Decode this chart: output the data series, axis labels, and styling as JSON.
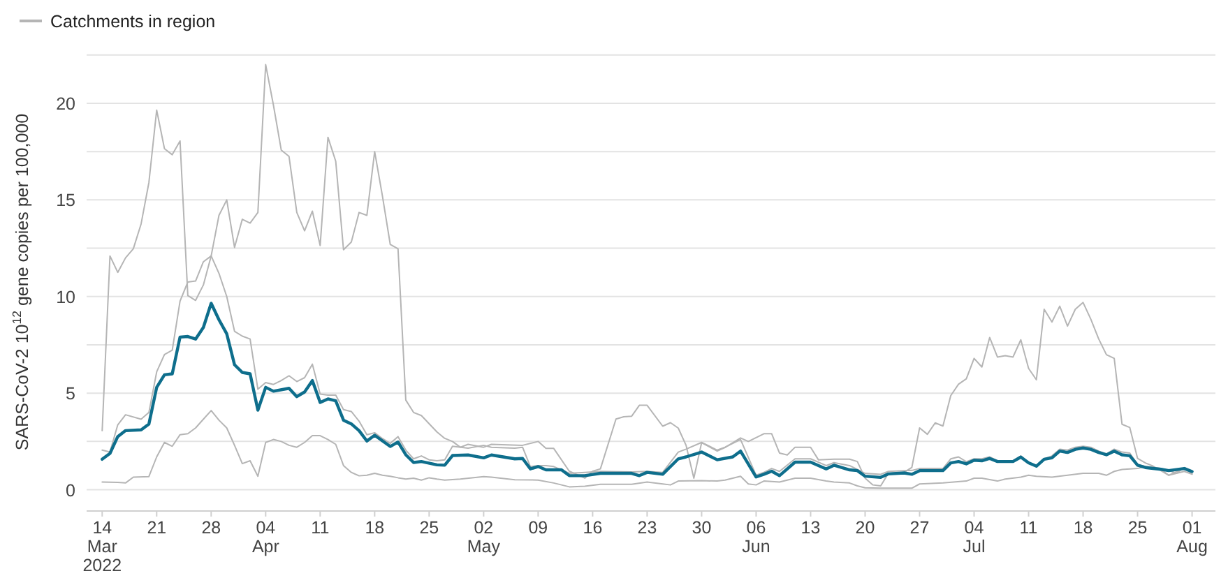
{
  "chart_data": {
    "type": "line",
    "ylabel": "SARS-CoV-2  10$^{12}$ gene copies per 100,000",
    "xlim": [
      "2022-03-12",
      "2022-08-04"
    ],
    "ylim": [
      -1.1,
      22.6
    ],
    "xticks": [
      {
        "value": "2022-03-14",
        "label": "14\nMar\n2022"
      },
      {
        "value": "2022-03-21",
        "label": "21"
      },
      {
        "value": "2022-03-28",
        "label": "28"
      },
      {
        "value": "2022-04-04",
        "label": "04\nApr"
      },
      {
        "value": "2022-04-11",
        "label": "11"
      },
      {
        "value": "2022-04-18",
        "label": "18"
      },
      {
        "value": "2022-04-25",
        "label": "25"
      },
      {
        "value": "2022-05-02",
        "label": "02\nMay"
      },
      {
        "value": "2022-05-09",
        "label": "09"
      },
      {
        "value": "2022-05-16",
        "label": "16"
      },
      {
        "value": "2022-05-23",
        "label": "23"
      },
      {
        "value": "2022-05-30",
        "label": "30"
      },
      {
        "value": "2022-06-06",
        "label": "06\nJun"
      },
      {
        "value": "2022-06-13",
        "label": "13"
      },
      {
        "value": "2022-06-20",
        "label": "20"
      },
      {
        "value": "2022-06-27",
        "label": "27"
      },
      {
        "value": "2022-07-04",
        "label": "04\nJul"
      },
      {
        "value": "2022-07-11",
        "label": "11"
      },
      {
        "value": "2022-07-18",
        "label": "18"
      },
      {
        "value": "2022-07-25",
        "label": "25"
      },
      {
        "value": "2022-08-01",
        "label": "01\nAug"
      }
    ],
    "yticks": [
      0,
      {
        "value": 2.5,
        "label": null
      },
      5,
      {
        "value": 7.5,
        "label": null
      },
      10,
      {
        "value": 12.5,
        "label": null
      },
      15,
      {
        "value": 17.5,
        "label": null
      },
      20,
      {
        "value": 22.5,
        "label": null
      }
    ],
    "grid": "y",
    "legend": "top left",
    "marker": "none",
    "line_style": "solid",
    "series": [
      {
        "color": "#0e6e8c",
        "x": [
          "2022-03-14",
          "2022-03-15",
          "2022-03-16",
          "2022-03-17",
          "2022-03-19",
          "2022-03-20",
          "2022-03-21",
          "2022-03-22",
          "2022-03-23",
          "2022-03-24",
          "2022-03-25",
          "2022-03-26",
          "2022-03-27",
          "2022-03-28",
          "2022-03-29",
          "2022-03-30",
          "2022-03-31",
          "2022-04-01",
          "2022-04-02",
          "2022-04-03",
          "2022-04-04",
          "2022-04-05",
          "2022-04-07",
          "2022-04-08",
          "2022-04-09",
          "2022-04-10",
          "2022-04-11",
          "2022-04-12",
          "2022-04-13",
          "2022-04-14",
          "2022-04-15",
          "2022-04-16",
          "2022-04-17",
          "2022-04-18",
          "2022-04-20",
          "2022-04-21",
          "2022-04-22",
          "2022-04-23",
          "2022-04-24",
          "2022-04-26",
          "2022-04-27",
          "2022-04-28",
          "2022-04-30",
          "2022-05-02",
          "2022-05-03",
          "2022-05-06",
          "2022-05-07",
          "2022-05-08",
          "2022-05-09",
          "2022-05-10",
          "2022-05-12",
          "2022-05-13",
          "2022-05-15",
          "2022-05-17",
          "2022-05-21",
          "2022-05-22",
          "2022-05-23",
          "2022-05-25",
          "2022-05-27",
          "2022-05-28",
          "2022-05-30",
          "2022-06-01",
          "2022-06-03",
          "2022-06-04",
          "2022-06-06",
          "2022-06-07",
          "2022-06-08",
          "2022-06-09",
          "2022-06-11",
          "2022-06-13",
          "2022-06-15",
          "2022-06-16",
          "2022-06-18",
          "2022-06-19",
          "2022-06-20",
          "2022-06-22",
          "2022-06-23",
          "2022-06-25",
          "2022-06-26",
          "2022-06-27",
          "2022-06-30",
          "2022-07-01",
          "2022-07-02",
          "2022-07-03",
          "2022-07-04",
          "2022-07-05",
          "2022-07-06",
          "2022-07-07",
          "2022-07-09",
          "2022-07-10",
          "2022-07-11",
          "2022-07-12",
          "2022-07-13",
          "2022-07-14",
          "2022-07-15",
          "2022-07-16",
          "2022-07-17",
          "2022-07-18",
          "2022-07-19",
          "2022-07-20",
          "2022-07-21",
          "2022-07-22",
          "2022-07-23",
          "2022-07-24",
          "2022-07-25",
          "2022-07-26",
          "2022-07-28",
          "2022-07-29",
          "2022-07-31",
          "2022-08-01"
        ],
        "values": [
          1.58,
          1.88,
          2.75,
          3.06,
          3.1,
          3.4,
          5.3,
          5.95,
          6.0,
          7.9,
          7.93,
          7.8,
          8.4,
          9.65,
          8.8,
          8.07,
          6.47,
          6.07,
          6.0,
          4.12,
          5.3,
          5.1,
          5.25,
          4.82,
          5.06,
          5.65,
          4.52,
          4.7,
          4.6,
          3.6,
          3.41,
          3.06,
          2.52,
          2.82,
          2.24,
          2.47,
          1.81,
          1.41,
          1.46,
          1.29,
          1.27,
          1.77,
          1.8,
          1.65,
          1.8,
          1.6,
          1.62,
          1.08,
          1.2,
          1.03,
          1.03,
          0.73,
          0.73,
          0.85,
          0.85,
          0.73,
          0.9,
          0.8,
          1.6,
          1.7,
          1.95,
          1.55,
          1.7,
          2.0,
          0.66,
          0.8,
          0.96,
          0.73,
          1.43,
          1.43,
          1.08,
          1.27,
          1.03,
          0.99,
          0.7,
          0.64,
          0.82,
          0.87,
          0.8,
          0.99,
          0.99,
          1.39,
          1.46,
          1.34,
          1.53,
          1.5,
          1.62,
          1.46,
          1.46,
          1.69,
          1.39,
          1.22,
          1.58,
          1.65,
          2.0,
          1.93,
          2.09,
          2.16,
          2.09,
          1.93,
          1.81,
          2.0,
          1.81,
          1.76,
          1.27,
          1.15,
          1.06,
          0.99,
          1.1,
          0.94
        ]
      },
      {
        "name": "Catchments in region",
        "color": "#b5b5b5",
        "x": [
          "2022-03-14",
          "2022-03-15",
          "2022-03-16",
          "2022-03-17",
          "2022-03-18",
          "2022-03-19",
          "2022-03-20",
          "2022-03-21",
          "2022-03-22",
          "2022-03-23",
          "2022-03-24",
          "2022-03-25",
          "2022-03-26",
          "2022-03-27",
          "2022-03-28",
          "2022-03-29",
          "2022-03-30",
          "2022-03-31",
          "2022-04-01",
          "2022-04-02",
          "2022-04-03",
          "2022-04-04",
          "2022-04-05",
          "2022-04-06",
          "2022-04-07",
          "2022-04-08",
          "2022-04-09",
          "2022-04-10",
          "2022-04-11",
          "2022-04-12",
          "2022-04-13",
          "2022-04-14",
          "2022-04-15",
          "2022-04-16",
          "2022-04-17",
          "2022-04-18",
          "2022-04-19",
          "2022-04-20",
          "2022-04-21",
          "2022-04-22",
          "2022-04-23",
          "2022-04-24",
          "2022-04-26",
          "2022-04-27",
          "2022-04-28",
          "2022-04-29",
          "2022-04-30",
          "2022-05-02",
          "2022-05-03",
          "2022-05-07",
          "2022-05-09",
          "2022-05-10",
          "2022-05-11",
          "2022-05-13",
          "2022-05-15",
          "2022-05-16",
          "2022-05-17",
          "2022-05-19",
          "2022-05-20",
          "2022-05-21",
          "2022-05-22",
          "2022-05-23",
          "2022-05-25",
          "2022-05-26",
          "2022-05-27",
          "2022-05-28",
          "2022-05-29",
          "2022-05-30",
          "2022-06-01",
          "2022-06-02",
          "2022-06-04",
          "2022-06-05",
          "2022-06-07",
          "2022-06-08",
          "2022-06-09",
          "2022-06-10",
          "2022-06-11",
          "2022-06-13",
          "2022-06-14",
          "2022-06-16",
          "2022-06-18",
          "2022-06-19",
          "2022-06-20",
          "2022-06-21",
          "2022-06-22",
          "2022-06-23",
          "2022-06-25",
          "2022-06-26",
          "2022-06-27",
          "2022-06-28",
          "2022-06-29",
          "2022-06-30",
          "2022-07-01",
          "2022-07-02",
          "2022-07-03",
          "2022-07-04",
          "2022-07-05",
          "2022-07-06",
          "2022-07-07",
          "2022-07-08",
          "2022-07-09",
          "2022-07-10",
          "2022-07-11",
          "2022-07-12",
          "2022-07-13",
          "2022-07-14",
          "2022-07-15",
          "2022-07-16",
          "2022-07-17",
          "2022-07-18",
          "2022-07-19",
          "2022-07-20",
          "2022-07-21",
          "2022-07-22",
          "2022-07-23",
          "2022-07-24",
          "2022-07-25",
          "2022-07-26",
          "2022-07-27",
          "2022-07-28",
          "2022-07-29",
          "2022-07-30",
          "2022-07-31",
          "2022-08-01"
        ],
        "values": [
          3.06,
          12.1,
          11.25,
          12.0,
          12.47,
          13.76,
          15.9,
          19.65,
          17.65,
          17.34,
          18.05,
          10.05,
          9.8,
          10.6,
          12.1,
          14.2,
          15.0,
          12.54,
          14.0,
          13.8,
          14.35,
          22.0,
          19.9,
          17.58,
          17.25,
          14.35,
          13.4,
          14.42,
          12.64,
          18.24,
          17.0,
          12.42,
          12.82,
          14.35,
          14.2,
          17.5,
          15.2,
          12.7,
          12.47,
          4.64,
          4.0,
          3.84,
          2.99,
          2.66,
          2.5,
          2.2,
          2.35,
          2.2,
          2.35,
          2.3,
          2.5,
          2.14,
          2.14,
          0.96,
          0.6,
          0.96,
          1.08,
          3.66,
          3.78,
          3.8,
          4.37,
          4.37,
          3.29,
          3.47,
          3.19,
          2.3,
          0.6,
          2.44,
          2.0,
          2.18,
          2.68,
          2.5,
          2.9,
          2.9,
          1.9,
          1.8,
          2.2,
          2.2,
          1.55,
          1.58,
          1.58,
          1.46,
          0.6,
          0.25,
          0.2,
          0.85,
          0.9,
          1.15,
          3.2,
          2.87,
          3.46,
          3.3,
          4.87,
          5.46,
          5.74,
          6.8,
          6.35,
          7.88,
          6.87,
          6.94,
          6.87,
          7.76,
          6.28,
          5.69,
          9.34,
          8.68,
          9.5,
          8.47,
          9.34,
          9.69,
          8.82,
          7.81,
          6.99,
          6.8,
          3.39,
          3.22,
          1.62,
          1.39,
          1.22,
          0.99,
          0.75,
          0.94,
          1.1,
          0.82
        ]
      },
      {
        "color": "#b5b5b5",
        "x": [
          "2022-03-14",
          "2022-03-15",
          "2022-03-16",
          "2022-03-17",
          "2022-03-19",
          "2022-03-20",
          "2022-03-21",
          "2022-03-22",
          "2022-03-23",
          "2022-03-24",
          "2022-03-25",
          "2022-03-26",
          "2022-03-27",
          "2022-03-28",
          "2022-03-29",
          "2022-03-30",
          "2022-03-31",
          "2022-04-01",
          "2022-04-02",
          "2022-04-03",
          "2022-04-04",
          "2022-04-05",
          "2022-04-06",
          "2022-04-07",
          "2022-04-08",
          "2022-04-09",
          "2022-04-10",
          "2022-04-11",
          "2022-04-12",
          "2022-04-13",
          "2022-04-14",
          "2022-04-15",
          "2022-04-16",
          "2022-04-17",
          "2022-04-18",
          "2022-04-19",
          "2022-04-20",
          "2022-04-21",
          "2022-04-22",
          "2022-04-23",
          "2022-04-24",
          "2022-04-25",
          "2022-04-26",
          "2022-04-27",
          "2022-04-28",
          "2022-04-30",
          "2022-05-02",
          "2022-05-03",
          "2022-05-06",
          "2022-05-07",
          "2022-05-08",
          "2022-05-09",
          "2022-05-10",
          "2022-05-11",
          "2022-05-13",
          "2022-05-15",
          "2022-05-17",
          "2022-05-21",
          "2022-05-23",
          "2022-05-25",
          "2022-05-27",
          "2022-05-28",
          "2022-05-30",
          "2022-06-01",
          "2022-06-02",
          "2022-06-04",
          "2022-06-06",
          "2022-06-07",
          "2022-06-08",
          "2022-06-09",
          "2022-06-11",
          "2022-06-13",
          "2022-06-15",
          "2022-06-16",
          "2022-06-18",
          "2022-06-19",
          "2022-06-20",
          "2022-06-22",
          "2022-06-23",
          "2022-06-26",
          "2022-06-27",
          "2022-06-30",
          "2022-07-01",
          "2022-07-02",
          "2022-07-03",
          "2022-07-04",
          "2022-07-05",
          "2022-07-06",
          "2022-07-07",
          "2022-07-09",
          "2022-07-10",
          "2022-07-11",
          "2022-07-12",
          "2022-07-13",
          "2022-07-14",
          "2022-07-15",
          "2022-07-16",
          "2022-07-17",
          "2022-07-18",
          "2022-07-19",
          "2022-07-20",
          "2022-07-21",
          "2022-07-22",
          "2022-07-23",
          "2022-07-24",
          "2022-07-25",
          "2022-07-26",
          "2022-07-28",
          "2022-07-29",
          "2022-07-30",
          "2022-07-31",
          "2022-08-01"
        ],
        "values": [
          2.05,
          1.95,
          3.36,
          3.88,
          3.65,
          4.0,
          6.1,
          7.0,
          7.22,
          9.76,
          10.75,
          10.8,
          11.8,
          12.1,
          11.2,
          10.0,
          8.2,
          7.95,
          7.8,
          5.2,
          5.55,
          5.45,
          5.65,
          5.9,
          5.6,
          5.8,
          6.5,
          4.95,
          4.9,
          4.9,
          4.15,
          4.05,
          3.55,
          2.85,
          2.95,
          2.65,
          2.4,
          2.75,
          2.05,
          1.6,
          1.75,
          1.55,
          1.5,
          1.55,
          2.25,
          2.15,
          2.3,
          2.2,
          2.15,
          2.2,
          1.2,
          1.25,
          1.25,
          1.2,
          0.85,
          0.9,
          0.95,
          0.92,
          0.95,
          0.9,
          1.95,
          2.1,
          2.45,
          2.05,
          2.2,
          2.6,
          0.75,
          0.9,
          1.1,
          0.95,
          1.6,
          1.6,
          1.25,
          1.4,
          1.25,
          1.05,
          0.85,
          0.8,
          0.95,
          1.0,
          1.1,
          1.1,
          1.6,
          1.7,
          1.45,
          1.6,
          1.6,
          1.7,
          1.5,
          1.5,
          1.75,
          1.4,
          1.25,
          1.6,
          1.75,
          2.1,
          2.05,
          2.2,
          2.25,
          2.2,
          2.0,
          1.85,
          2.1,
          1.95,
          1.9,
          1.3,
          1.2,
          1.1,
          1.0,
          0.85,
          1.15,
          0.95
        ]
      },
      {
        "color": "#b5b5b5",
        "x": [
          "2022-03-14",
          "2022-03-16",
          "2022-03-17",
          "2022-03-18",
          "2022-03-20",
          "2022-03-21",
          "2022-03-22",
          "2022-03-23",
          "2022-03-24",
          "2022-03-25",
          "2022-03-26",
          "2022-03-27",
          "2022-03-28",
          "2022-03-29",
          "2022-03-30",
          "2022-03-31",
          "2022-04-01",
          "2022-04-02",
          "2022-04-03",
          "2022-04-04",
          "2022-04-05",
          "2022-04-06",
          "2022-04-07",
          "2022-04-08",
          "2022-04-09",
          "2022-04-10",
          "2022-04-11",
          "2022-04-12",
          "2022-04-13",
          "2022-04-14",
          "2022-04-15",
          "2022-04-16",
          "2022-04-17",
          "2022-04-18",
          "2022-04-19",
          "2022-04-20",
          "2022-04-21",
          "2022-04-22",
          "2022-04-23",
          "2022-04-24",
          "2022-04-25",
          "2022-04-26",
          "2022-04-27",
          "2022-04-29",
          "2022-05-02",
          "2022-05-03",
          "2022-05-06",
          "2022-05-09",
          "2022-05-11",
          "2022-05-13",
          "2022-05-15",
          "2022-05-17",
          "2022-05-21",
          "2022-05-23",
          "2022-05-25",
          "2022-05-26",
          "2022-05-27",
          "2022-05-30",
          "2022-06-01",
          "2022-06-02",
          "2022-06-04",
          "2022-06-05",
          "2022-06-06",
          "2022-06-07",
          "2022-06-09",
          "2022-06-11",
          "2022-06-13",
          "2022-06-15",
          "2022-06-16",
          "2022-06-18",
          "2022-06-19",
          "2022-06-20",
          "2022-06-22",
          "2022-06-26",
          "2022-06-27",
          "2022-06-30",
          "2022-07-03",
          "2022-07-04",
          "2022-07-05",
          "2022-07-07",
          "2022-07-08",
          "2022-07-10",
          "2022-07-11",
          "2022-07-12",
          "2022-07-14",
          "2022-07-16",
          "2022-07-18",
          "2022-07-20",
          "2022-07-21",
          "2022-07-22",
          "2022-07-23",
          "2022-07-25",
          "2022-07-26",
          "2022-07-28",
          "2022-07-29",
          "2022-07-31",
          "2022-08-01"
        ],
        "values": [
          0.4,
          0.38,
          0.35,
          0.65,
          0.68,
          1.7,
          2.45,
          2.25,
          2.85,
          2.9,
          3.2,
          3.65,
          4.1,
          3.6,
          3.2,
          2.3,
          1.35,
          1.5,
          0.7,
          2.45,
          2.6,
          2.5,
          2.3,
          2.2,
          2.45,
          2.8,
          2.8,
          2.6,
          2.35,
          1.25,
          0.9,
          0.72,
          0.75,
          0.85,
          0.75,
          0.7,
          0.62,
          0.55,
          0.6,
          0.5,
          0.62,
          0.55,
          0.5,
          0.55,
          0.68,
          0.65,
          0.52,
          0.5,
          0.35,
          0.15,
          0.18,
          0.28,
          0.28,
          0.4,
          0.3,
          0.25,
          0.45,
          0.47,
          0.45,
          0.5,
          0.7,
          0.3,
          0.25,
          0.45,
          0.4,
          0.6,
          0.6,
          0.45,
          0.4,
          0.35,
          0.2,
          0.1,
          0.08,
          0.08,
          0.3,
          0.35,
          0.45,
          0.6,
          0.6,
          0.45,
          0.55,
          0.65,
          0.75,
          0.7,
          0.65,
          0.75,
          0.85,
          0.85,
          0.75,
          0.95,
          1.05,
          1.1,
          1.2,
          1.05,
          0.75,
          0.95,
          0.8
        ]
      }
    ]
  }
}
